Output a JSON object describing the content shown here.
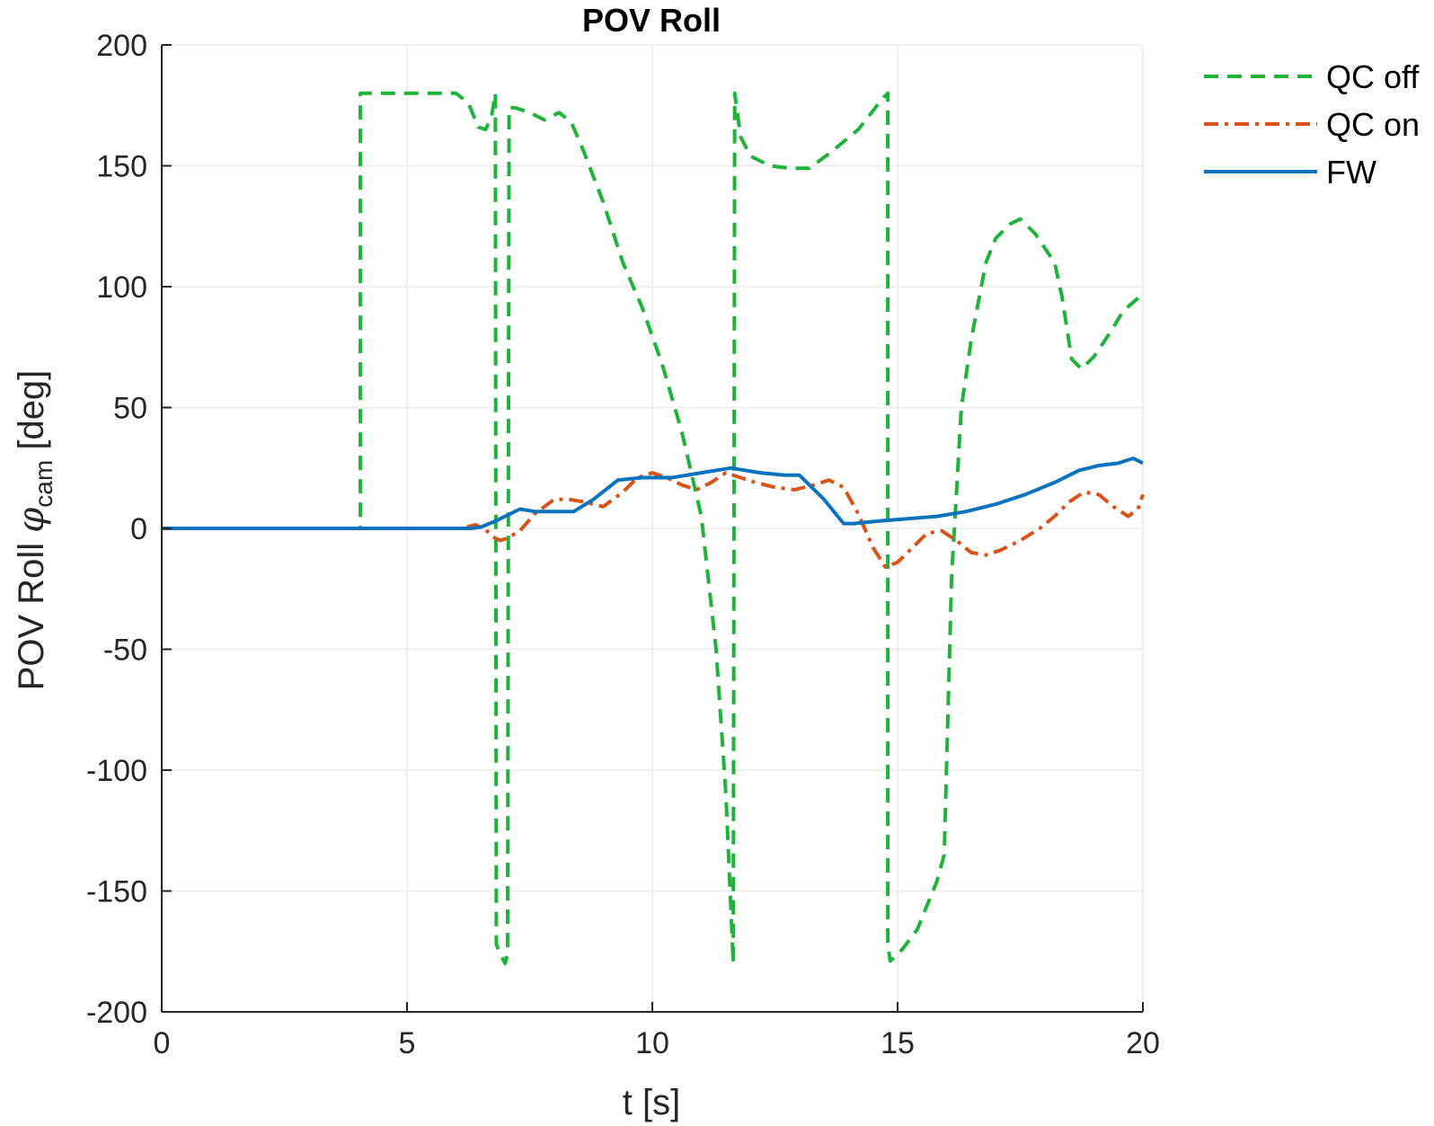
{
  "chart_data": {
    "type": "line",
    "title": "POV Roll",
    "xlabel": "t [s]",
    "ylabel": {
      "prefix": "POV Roll ",
      "symbol": "φ",
      "subscript": "cam",
      "suffix": " [deg]"
    },
    "xlim": [
      0,
      20
    ],
    "ylim": [
      -200,
      200
    ],
    "xticks": [
      0,
      5,
      10,
      15,
      20
    ],
    "xtick_labels": [
      "0",
      "5",
      "10",
      "15",
      "20"
    ],
    "yticks": [
      200,
      150,
      100,
      50,
      0,
      -50,
      -100,
      -150,
      -200
    ],
    "ytick_labels": [
      "200",
      "150",
      "100",
      "50",
      "0",
      "-50",
      "-100",
      "-150",
      "-200"
    ],
    "grid": true,
    "legend_position": "top-right, outside",
    "series": [
      {
        "name": "QC off",
        "color": "#1fb33a",
        "style": "dashed",
        "points": [
          [
            0,
            0
          ],
          [
            4.05,
            0
          ],
          [
            4.05,
            180
          ],
          [
            6.0,
            180
          ],
          [
            6.25,
            176
          ],
          [
            6.45,
            166
          ],
          [
            6.6,
            165
          ],
          [
            6.72,
            170
          ],
          [
            6.8,
            180
          ],
          [
            6.82,
            -172
          ],
          [
            6.9,
            -176
          ],
          [
            7.0,
            -180
          ],
          [
            7.05,
            -176
          ],
          [
            7.08,
            174
          ],
          [
            7.2,
            174
          ],
          [
            7.5,
            172
          ],
          [
            7.8,
            169
          ],
          [
            8.1,
            172
          ],
          [
            8.35,
            168
          ],
          [
            8.6,
            156
          ],
          [
            9.0,
            135
          ],
          [
            9.4,
            110
          ],
          [
            9.8,
            91
          ],
          [
            10.2,
            68
          ],
          [
            10.6,
            40
          ],
          [
            11.0,
            5
          ],
          [
            11.3,
            -50
          ],
          [
            11.5,
            -110
          ],
          [
            11.65,
            -180
          ],
          [
            11.68,
            180
          ],
          [
            11.8,
            162
          ],
          [
            12.0,
            154
          ],
          [
            12.4,
            150
          ],
          [
            12.8,
            149
          ],
          [
            13.2,
            149
          ],
          [
            13.6,
            155
          ],
          [
            14.2,
            165
          ],
          [
            14.7,
            178
          ],
          [
            14.8,
            180
          ],
          [
            14.8,
            -172
          ],
          [
            14.85,
            -179
          ],
          [
            15.1,
            -174
          ],
          [
            15.4,
            -166
          ],
          [
            15.8,
            -146
          ],
          [
            15.95,
            -135
          ],
          [
            16.1,
            -20
          ],
          [
            16.3,
            50
          ],
          [
            16.5,
            78
          ],
          [
            16.8,
            110
          ],
          [
            17.0,
            120
          ],
          [
            17.3,
            126
          ],
          [
            17.5,
            128
          ],
          [
            17.8,
            122
          ],
          [
            18.2,
            110
          ],
          [
            18.35,
            96
          ],
          [
            18.55,
            70
          ],
          [
            18.75,
            66
          ],
          [
            19.0,
            71
          ],
          [
            19.3,
            80
          ],
          [
            19.6,
            90
          ],
          [
            20.0,
            97
          ]
        ]
      },
      {
        "name": "QC on",
        "color": "#d95319",
        "style": "dashdot",
        "points": [
          [
            0,
            0
          ],
          [
            6.1,
            0
          ],
          [
            6.4,
            1.5
          ],
          [
            6.6,
            -0.5
          ],
          [
            6.75,
            -3.5
          ],
          [
            6.9,
            -5
          ],
          [
            7.05,
            -4
          ],
          [
            7.3,
            -1
          ],
          [
            7.6,
            6
          ],
          [
            8.0,
            12
          ],
          [
            8.3,
            12
          ],
          [
            8.6,
            11
          ],
          [
            9.0,
            9
          ],
          [
            9.4,
            15
          ],
          [
            9.7,
            21
          ],
          [
            10.0,
            23
          ],
          [
            10.3,
            21
          ],
          [
            10.6,
            18
          ],
          [
            10.9,
            16
          ],
          [
            11.2,
            19
          ],
          [
            11.5,
            23
          ],
          [
            11.8,
            21
          ],
          [
            12.1,
            19
          ],
          [
            12.5,
            17
          ],
          [
            12.9,
            16
          ],
          [
            13.3,
            18
          ],
          [
            13.6,
            20
          ],
          [
            13.9,
            17
          ],
          [
            14.2,
            6
          ],
          [
            14.5,
            -8
          ],
          [
            14.75,
            -16
          ],
          [
            15.0,
            -14
          ],
          [
            15.3,
            -8
          ],
          [
            15.6,
            -2
          ],
          [
            15.9,
            -1
          ],
          [
            16.2,
            -5
          ],
          [
            16.5,
            -10
          ],
          [
            16.8,
            -11
          ],
          [
            17.1,
            -9
          ],
          [
            17.5,
            -5
          ],
          [
            17.9,
            0
          ],
          [
            18.2,
            5
          ],
          [
            18.5,
            11
          ],
          [
            18.8,
            15
          ],
          [
            19.1,
            14
          ],
          [
            19.4,
            9
          ],
          [
            19.7,
            5
          ],
          [
            19.9,
            8
          ],
          [
            20.0,
            14
          ]
        ]
      },
      {
        "name": "FW",
        "color": "#0b72bd",
        "style": "solid",
        "points": [
          [
            0,
            0
          ],
          [
            6.3,
            0
          ],
          [
            6.5,
            0.5
          ],
          [
            6.8,
            3
          ],
          [
            7.0,
            5
          ],
          [
            7.3,
            8
          ],
          [
            7.6,
            7
          ],
          [
            8.0,
            7
          ],
          [
            8.4,
            7
          ],
          [
            8.8,
            12
          ],
          [
            9.3,
            20
          ],
          [
            9.8,
            21
          ],
          [
            10.4,
            21
          ],
          [
            11.0,
            23
          ],
          [
            11.6,
            25
          ],
          [
            12.2,
            23
          ],
          [
            12.7,
            22
          ],
          [
            13.0,
            22
          ],
          [
            13.5,
            12
          ],
          [
            13.9,
            2
          ],
          [
            14.1,
            2
          ],
          [
            14.6,
            3
          ],
          [
            15.2,
            4
          ],
          [
            15.8,
            5
          ],
          [
            16.4,
            7
          ],
          [
            17.0,
            10
          ],
          [
            17.6,
            14
          ],
          [
            18.2,
            19
          ],
          [
            18.7,
            24
          ],
          [
            19.1,
            26
          ],
          [
            19.5,
            27
          ],
          [
            19.8,
            29
          ],
          [
            20.0,
            27
          ]
        ]
      }
    ]
  }
}
